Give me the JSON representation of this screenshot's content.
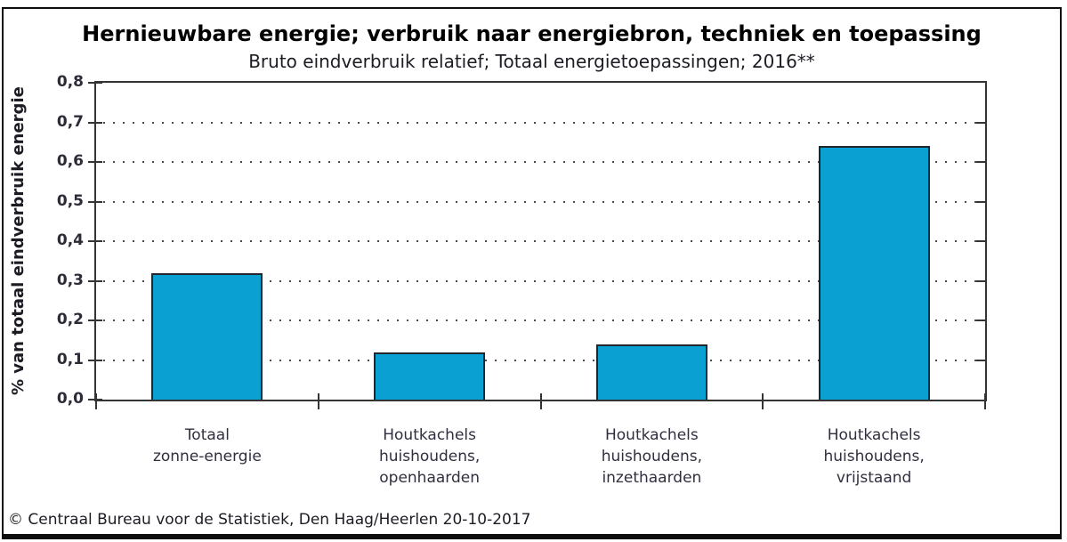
{
  "chart_data": {
    "type": "bar",
    "title": "Hernieuwbare energie; verbruik naar energiebron, techniek en toepassing",
    "subtitle": "Bruto eindverbruik relatief; Totaal energietoepassingen; 2016**",
    "ylabel": "% van totaal eindverbruik energie",
    "xlabel": "",
    "categories": [
      [
        "Totaal",
        "zonne-energie"
      ],
      [
        "Houtkachels",
        "huishoudens,",
        "openhaarden"
      ],
      [
        "Houtkachels",
        "huishoudens,",
        "inzethaarden"
      ],
      [
        "Houtkachels",
        "huishoudens,",
        "vrijstaand"
      ]
    ],
    "values": [
      0.32,
      0.12,
      0.14,
      0.64
    ],
    "ylim": [
      0,
      0.8
    ],
    "ytick_step": 0.1,
    "ytick_labels": [
      "0,0",
      "0,1",
      "0,2",
      "0,3",
      "0,4",
      "0,5",
      "0,6",
      "0,7",
      "0,8"
    ],
    "grid": "horizontal-dotted",
    "legend": "none",
    "bar_color": "#0aa0d2",
    "bar_border_color": "#20262b",
    "axis_color": "#343434"
  },
  "footer": {
    "text": "© Centraal Bureau voor de Statistiek, Den Haag/Heerlen 20-10-2017"
  }
}
